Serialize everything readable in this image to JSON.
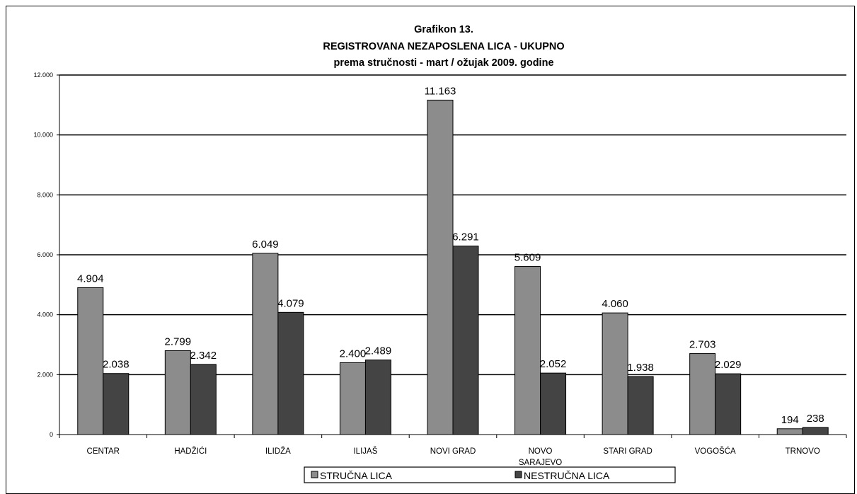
{
  "chart_data": {
    "type": "bar",
    "title": "Grafikon 13.",
    "subtitle": "REGISTROVANA NEZAPOSLENA LICA - UKUPNO",
    "subtitle2": "prema stručnosti -  mart / ožujak 2009. godine",
    "xlabel": "",
    "ylabel": "",
    "ylim": [
      0,
      12000
    ],
    "yticks": [
      0,
      2000,
      4000,
      6000,
      8000,
      10000,
      12000
    ],
    "ytick_labels": [
      "0",
      "2.000",
      "4.000",
      "6.000",
      "8.000",
      "10.000",
      "12.000"
    ],
    "grid": true,
    "legend_position": "bottom",
    "categories": [
      "CENTAR",
      "HADŽIĆI",
      "ILIDŽA",
      "ILIJAŠ",
      "NOVI GRAD",
      "NOVO SARAJEVO",
      "STARI GRAD",
      "VOGOŠĆA",
      "TRNOVO"
    ],
    "category_lines": [
      [
        "CENTAR"
      ],
      [
        "HADŽIĆI"
      ],
      [
        "ILIDŽA"
      ],
      [
        "ILIJAŠ"
      ],
      [
        "NOVI GRAD"
      ],
      [
        "NOVO",
        "SARAJEVO"
      ],
      [
        "STARI GRAD"
      ],
      [
        "VOGOŠĆA"
      ],
      [
        "TRNOVO"
      ]
    ],
    "series": [
      {
        "name": "STRUČNA LICA",
        "color": "#8c8c8c",
        "values": [
          4904,
          2799,
          6049,
          2400,
          11163,
          5609,
          4060,
          2703,
          194
        ],
        "labels": [
          "4.904",
          "2.799",
          "6.049",
          "2.400",
          "11.163",
          "5.609",
          "4.060",
          "2.703",
          "194"
        ]
      },
      {
        "name": "NESTRUČNA LICA",
        "color": "#444444",
        "values": [
          2038,
          2342,
          4079,
          2489,
          6291,
          2052,
          1938,
          2029,
          238
        ],
        "labels": [
          "2.038",
          "2.342",
          "4.079",
          "2.489",
          "6.291",
          "2.052",
          "1.938",
          "2.029",
          "238"
        ]
      }
    ]
  }
}
